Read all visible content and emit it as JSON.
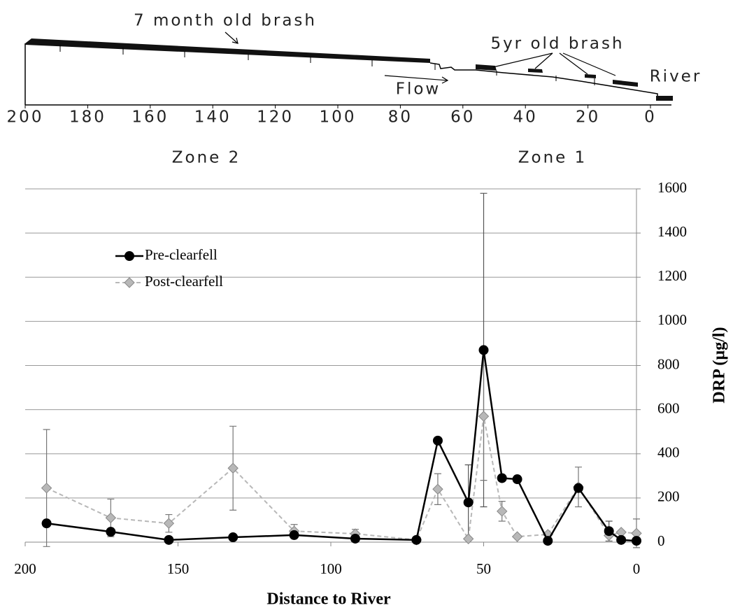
{
  "profile": {
    "labels": {
      "old_brash": "7 month old brash",
      "young_brash": "5yr old brash",
      "flow": "Flow",
      "river": "River"
    },
    "xlim": [
      200,
      0
    ],
    "xticks": [
      200,
      180,
      160,
      140,
      120,
      100,
      80,
      60,
      40,
      20,
      0
    ],
    "zones": [
      "Zone 2",
      "Zone 1"
    ]
  },
  "chart_data": {
    "type": "line",
    "x_label": "Distance to River",
    "y_label": "DRP (µg/l)",
    "x": [
      193,
      172,
      153,
      132,
      112,
      92,
      72,
      65,
      55,
      50,
      44,
      39,
      29,
      19,
      9,
      5,
      0
    ],
    "series": [
      {
        "name": "Pre-clearfell",
        "color": "#000000",
        "values": [
          85,
          47,
          10,
          22,
          32,
          16,
          10,
          460,
          180,
          870,
          290,
          285,
          6,
          245,
          50,
          10,
          6
        ],
        "errors": [
          null,
          null,
          null,
          null,
          null,
          null,
          null,
          null,
          170,
          710,
          null,
          null,
          null,
          null,
          45,
          null,
          null
        ]
      },
      {
        "name": "Post-clearfell",
        "color": "#b8b8b8",
        "values": [
          245,
          110,
          85,
          335,
          50,
          38,
          10,
          240,
          15,
          570,
          140,
          25,
          35,
          250,
          30,
          45,
          40
        ],
        "errors": [
          265,
          85,
          40,
          190,
          30,
          20,
          null,
          70,
          null,
          290,
          45,
          null,
          null,
          90,
          null,
          null,
          65
        ]
      }
    ],
    "xlim": [
      200,
      0
    ],
    "xticks": [
      200,
      150,
      100,
      50,
      0
    ],
    "ylim": [
      0,
      1600
    ],
    "yticks": [
      0,
      200,
      400,
      600,
      800,
      1000,
      1200,
      1400,
      1600
    ],
    "grid": true,
    "legend": "upper left",
    "y_axis_side": "right"
  }
}
